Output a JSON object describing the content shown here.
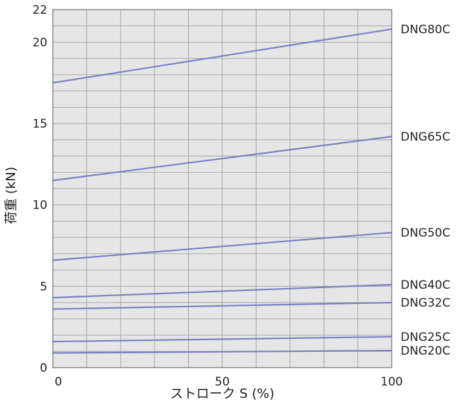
{
  "chart_data": {
    "type": "line",
    "title": "",
    "xlabel": "ストローク S (%)",
    "ylabel": "荷重 (kN)",
    "xlim": [
      0,
      100
    ],
    "ylim": [
      0,
      22
    ],
    "x_ticks": [
      0,
      50,
      100
    ],
    "x_tick_labels": [
      "0",
      "50",
      "100"
    ],
    "y_ticks": [
      0,
      5,
      10,
      15,
      20,
      22
    ],
    "y_tick_labels": [
      "0",
      "5",
      "10",
      "15",
      "20",
      "22"
    ],
    "grid": true,
    "x": [
      0,
      100
    ],
    "series": [
      {
        "name": "DNG80C",
        "values": [
          17.5,
          20.8
        ]
      },
      {
        "name": "DNG65C",
        "values": [
          11.5,
          14.2
        ]
      },
      {
        "name": "DNG50C",
        "values": [
          6.6,
          8.3
        ]
      },
      {
        "name": "DNG40C",
        "values": [
          4.3,
          5.1
        ]
      },
      {
        "name": "DNG32C",
        "values": [
          3.6,
          4.0
        ]
      },
      {
        "name": "DNG25C",
        "values": [
          1.6,
          1.9
        ]
      },
      {
        "name": "DNG20C",
        "values": [
          0.9,
          1.05
        ]
      }
    ],
    "line_color": "#7b80c4",
    "plot_background": "#e6e6e6",
    "grid_color": "#a6a6a6"
  }
}
